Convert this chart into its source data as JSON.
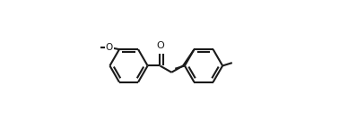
{
  "bg_color": "#ffffff",
  "line_color": "#1a1a1a",
  "line_width": 1.5,
  "dbo": 0.018,
  "figsize": [
    3.88,
    1.34
  ],
  "dpi": 100,
  "r": 0.115,
  "xlim": [
    0.0,
    1.0
  ],
  "ylim": [
    0.05,
    0.78
  ]
}
